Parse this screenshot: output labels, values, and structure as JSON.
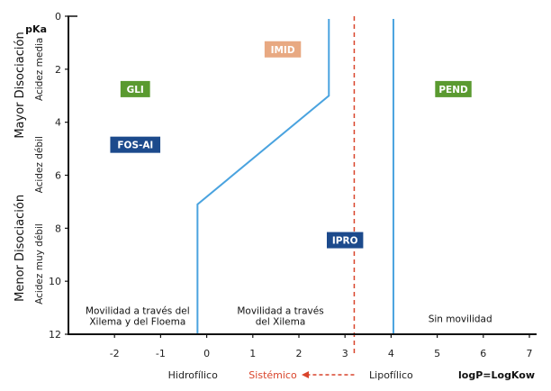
{
  "chart_data": {
    "type": "scatter",
    "x_axis": {
      "label": "logP=LogKow",
      "range": [
        -3,
        7
      ],
      "ticks": [
        -2,
        -1,
        0,
        1,
        2,
        3,
        4,
        5,
        6,
        7
      ],
      "tick_labels": [
        "-2",
        "-1",
        "0",
        "1",
        "2",
        "3",
        "4",
        "5",
        "6",
        "7"
      ]
    },
    "y_axis": {
      "label": "pKa",
      "range": [
        0,
        12
      ],
      "inverted": true,
      "ticks": [
        0,
        2,
        4,
        6,
        8,
        10,
        12
      ],
      "tick_labels": [
        "0",
        "2",
        "4",
        "6",
        "8",
        "10",
        "12"
      ]
    },
    "left_labels": {
      "outer_top": "Mayor Disociación",
      "outer_bottom": "Menor Disociación",
      "inner_top": "Acidez media",
      "inner_mid": "Acidez débil",
      "inner_bottom": "Acidez muy débil"
    },
    "bottom_labels": {
      "hydrophilic": "Hidrofílico",
      "systemic": "Sistémico",
      "lipophilic": "Lipofílico"
    },
    "regions": [
      {
        "lines": [
          "Movilidad a través del",
          "Xilema y del Floema"
        ],
        "x": -1.5,
        "y": 11.3
      },
      {
        "lines": [
          "Movilidad a través",
          "del Xilema"
        ],
        "x": 1.6,
        "y": 11.3
      },
      {
        "lines": [
          "Sin movilidad"
        ],
        "x": 5.5,
        "y": 11.4
      }
    ],
    "boundaries": [
      {
        "name": "phloem-xylem-boundary",
        "color": "#4aa3df",
        "points": [
          [
            -0.2,
            12
          ],
          [
            -0.2,
            7.1
          ],
          [
            2.65,
            3.0
          ],
          [
            2.65,
            0.1
          ]
        ]
      },
      {
        "name": "xylem-immobile-boundary",
        "color": "#4aa3df",
        "points": [
          [
            4.05,
            12
          ],
          [
            4.05,
            0.1
          ]
        ]
      }
    ],
    "systemic_line": {
      "x": 3.2,
      "color": "#d9442b",
      "style": "dashed"
    },
    "compounds": [
      {
        "label": "IMID",
        "x": 1.65,
        "y": 1.25,
        "color": "#e8a982"
      },
      {
        "label": "GLI",
        "x": -1.55,
        "y": 2.75,
        "color": "#5a9a30"
      },
      {
        "label": "PEND",
        "x": 5.35,
        "y": 2.75,
        "color": "#5a9a30"
      },
      {
        "label": "FOS-Al",
        "x": -1.55,
        "y": 4.85,
        "color": "#1c4a8c"
      },
      {
        "label": "IPRO",
        "x": 3.0,
        "y": 8.45,
        "color": "#1c4a8c"
      }
    ]
  }
}
